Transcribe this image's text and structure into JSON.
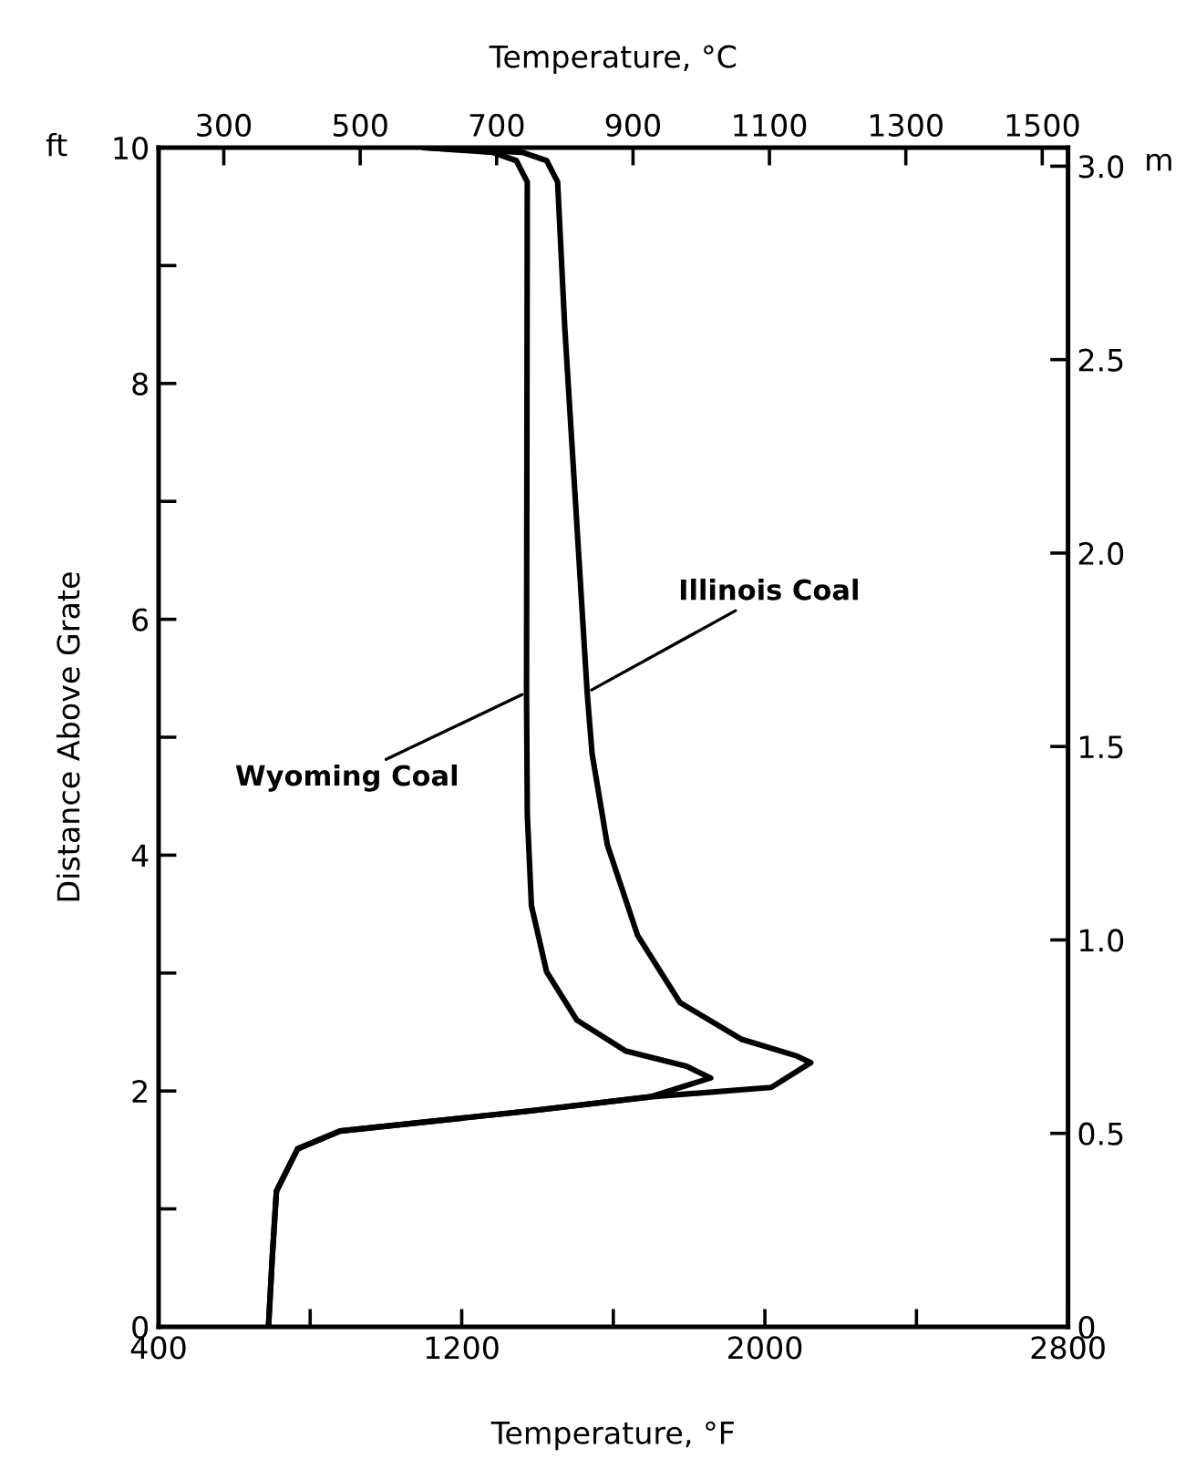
{
  "chart_data": {
    "type": "line",
    "xlabel": "Temperature, °F",
    "x2label": "Temperature, °C",
    "ylabel": "Distance Above Grate",
    "y2label": "m",
    "series": [
      {
        "color": "#000000",
        "x": [
          690,
          700,
          711,
          767,
          879,
          1376,
          1697,
          1857,
          1793,
          1632,
          1504,
          1424,
          1384,
          1373,
          1371,
          1373,
          1344,
          1280,
          1100
        ],
        "values": [
          0,
          0.59,
          1.15,
          1.51,
          1.66,
          1.83,
          1.95,
          2.11,
          2.21,
          2.34,
          2.6,
          3.01,
          3.57,
          4.35,
          5.38,
          9.71,
          9.89,
          9.96,
          10
        ]
      },
      {
        "color": "#000000",
        "x": [
          690,
          700,
          711,
          767,
          879,
          1376,
          1697,
          2017,
          2121,
          2081,
          1937,
          1776,
          1664,
          1584,
          1544,
          1531,
          1472,
          1453,
          1424,
          1360,
          1100
        ],
        "values": [
          0,
          0.59,
          1.15,
          1.51,
          1.66,
          1.83,
          1.95,
          2.03,
          2.24,
          2.3,
          2.44,
          2.75,
          3.32,
          4.09,
          4.86,
          5.38,
          8.47,
          9.71,
          9.89,
          9.96,
          10
        ]
      }
    ],
    "xlim": [
      400,
      2800
    ],
    "xticks": [
      400,
      {
        "value": 800,
        "label": null
      },
      1200,
      {
        "value": 1600,
        "label": null
      },
      2000,
      {
        "value": 2400,
        "label": null
      },
      2800
    ],
    "x2lim": [
      204.4,
      1537.8
    ],
    "x2ticks": [
      300,
      500,
      700,
      900,
      1100,
      1300,
      1500
    ],
    "ylim": [
      0,
      10
    ],
    "yticks": [
      0,
      {
        "value": 1,
        "label": null
      },
      2,
      {
        "value": 3,
        "label": null
      },
      4,
      {
        "value": 5,
        "label": null
      },
      6,
      {
        "value": 7,
        "label": null
      },
      8,
      {
        "value": 9,
        "label": null
      },
      10
    ],
    "y2lim": [
      0,
      3.048
    ],
    "y2ticks": [
      0,
      0.5,
      {
        "value": 1.0,
        "label": "1.0"
      },
      1.5,
      {
        "value": 2.0,
        "label": "2.0"
      },
      2.5,
      {
        "value": 3.0,
        "label": "3.0"
      }
    ],
    "annotations": [
      "ft",
      {
        "text": "Wyoming Coal",
        "x": 1371,
        "y": 5.38
      },
      {
        "text": "Illinois Coal",
        "x": 1531,
        "y": 5.38
      }
    ],
    "grid": false,
    "legend": false,
    "line_style": "solid",
    "marker": "none"
  }
}
